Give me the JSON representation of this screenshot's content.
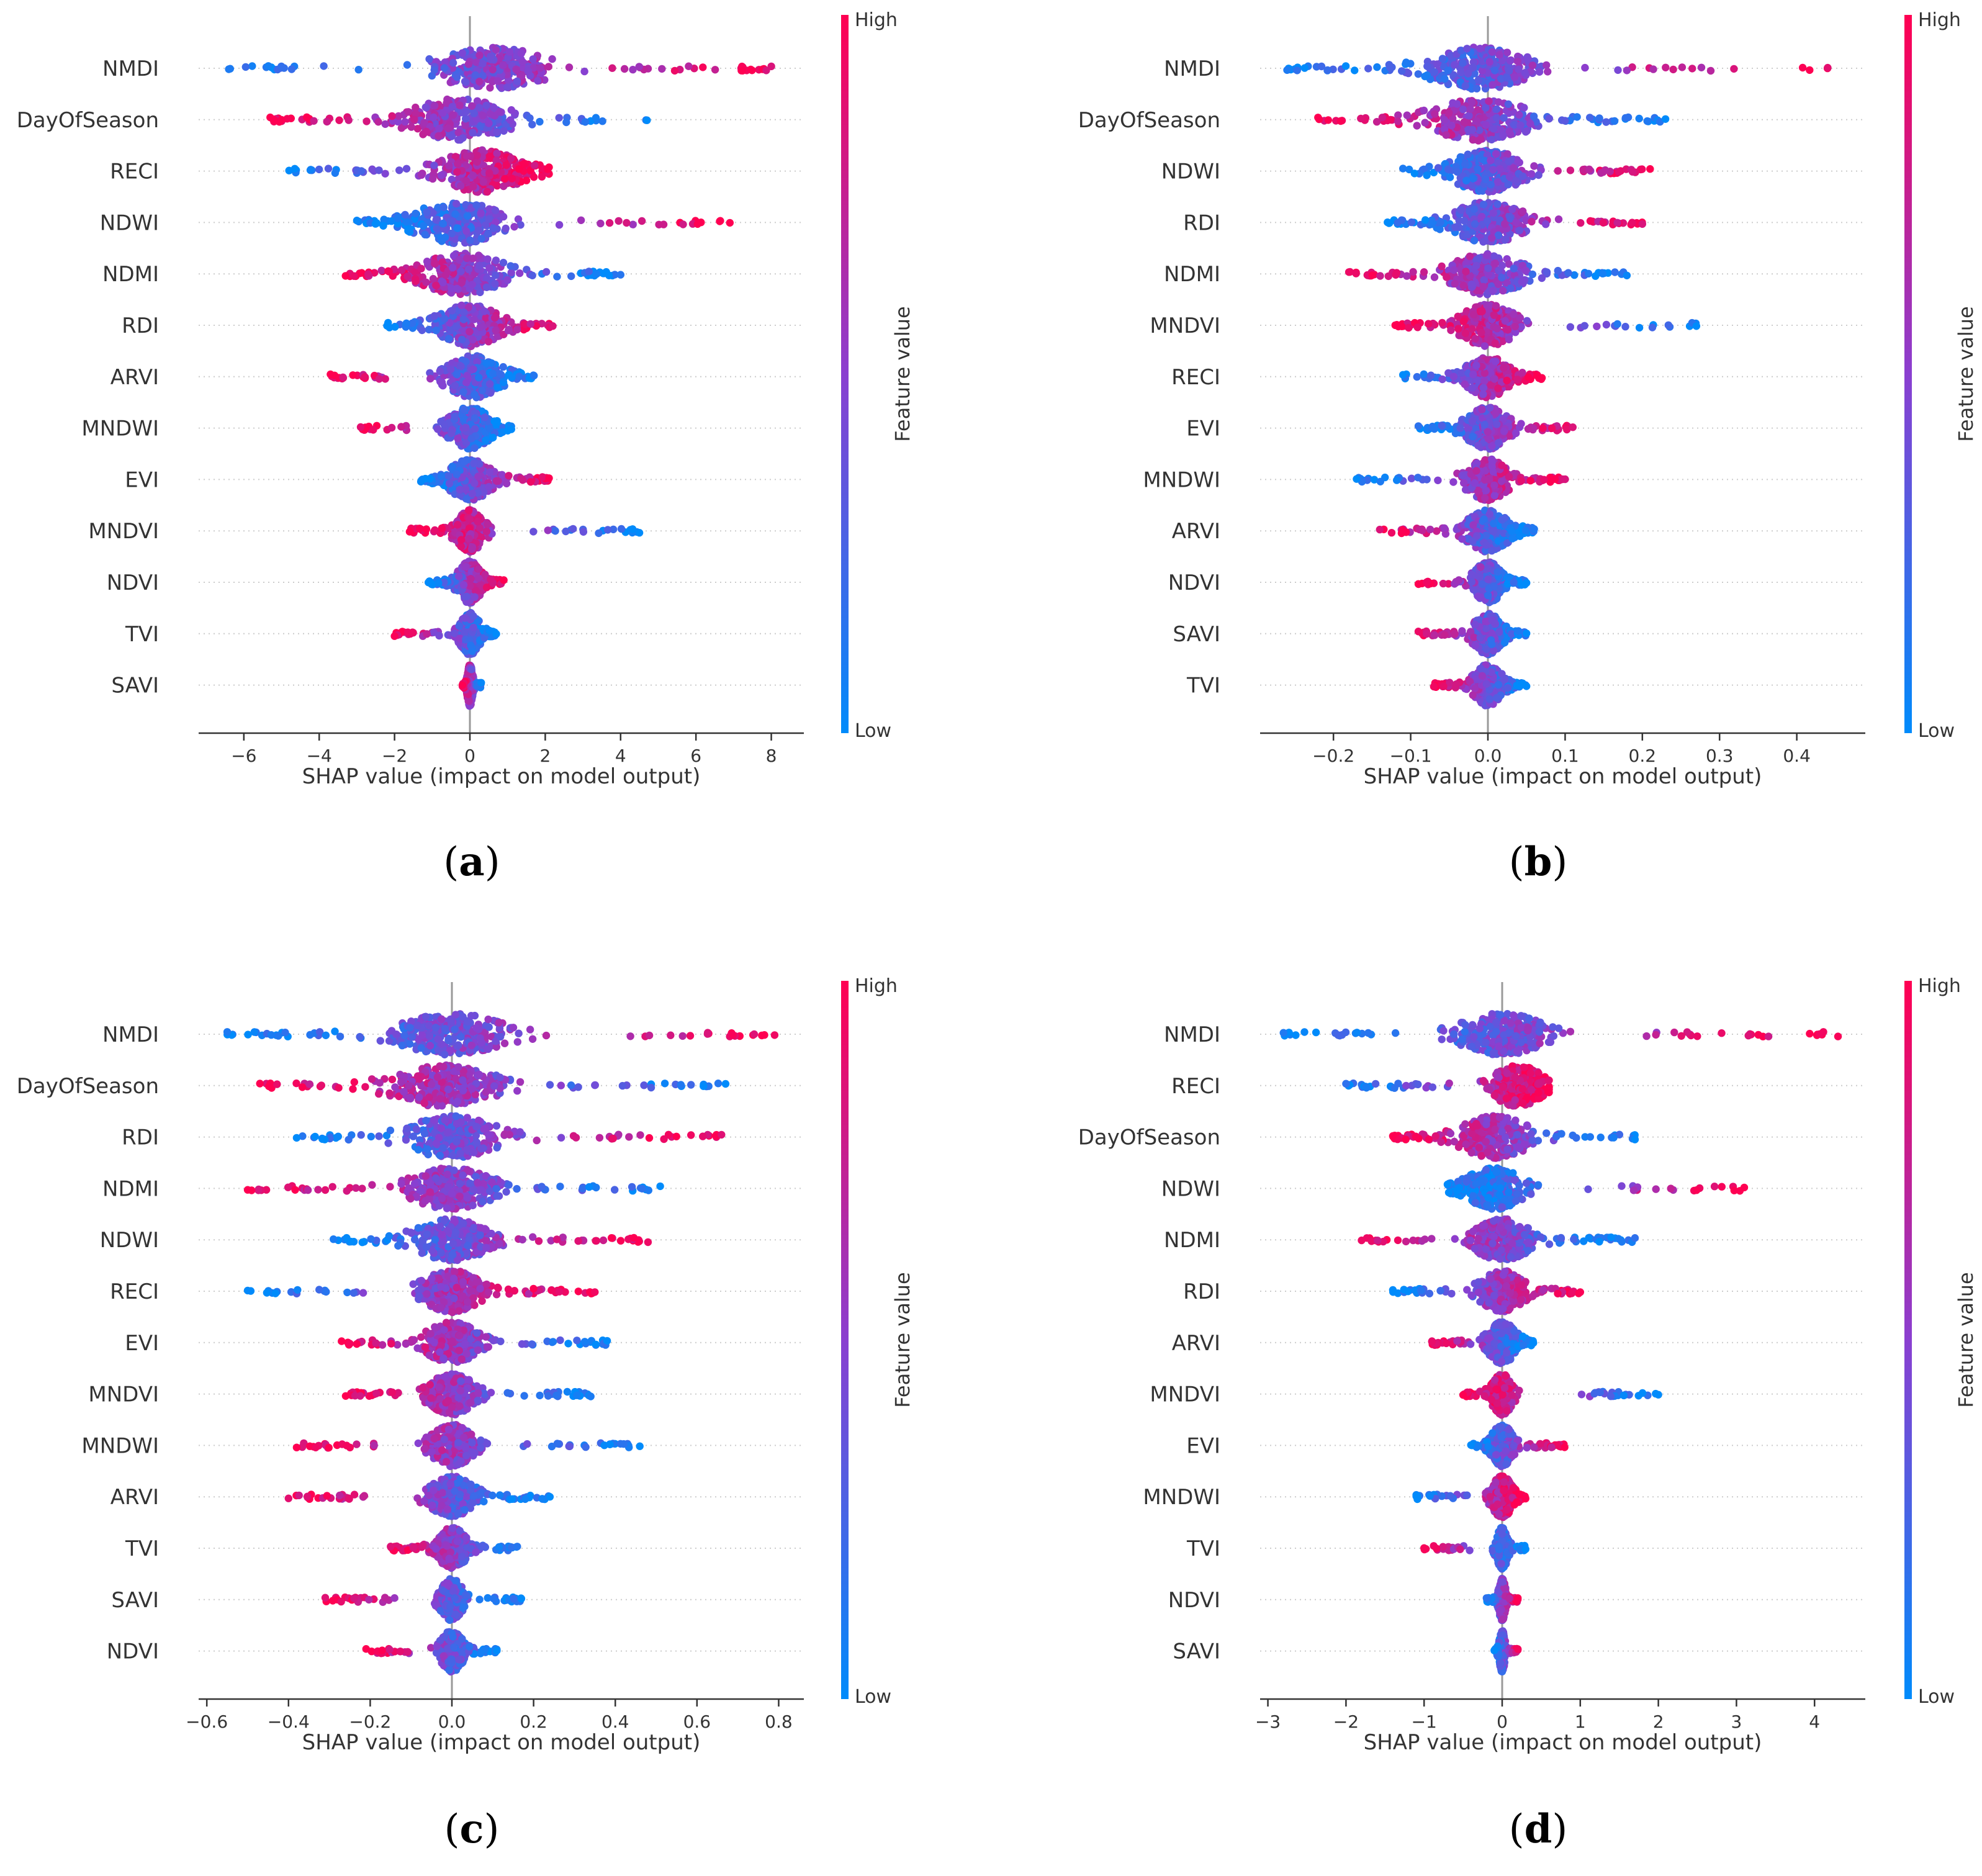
{
  "figure": {
    "colors": {
      "high": "#ff0052",
      "low": "#008bfb",
      "axis": "#333333",
      "zero_line": "#999999",
      "grid": "#cccccc"
    }
  },
  "chart_data": [
    {
      "type": "scatter",
      "subtype": "shap-beeswarm",
      "caption": "(a)",
      "xlabel": "SHAP value (impact on model output)",
      "xlim": [
        -7.2,
        8.8
      ],
      "xticks": [
        -6,
        -4,
        -2,
        0,
        2,
        4,
        6,
        8
      ],
      "xtick_labels": [
        "−6",
        "−4",
        "−2",
        "0",
        "2",
        "4",
        "6",
        "8"
      ],
      "colorbar": {
        "high": "High",
        "low": "Low",
        "title": "Feature value"
      },
      "features": [
        {
          "name": "NMDI",
          "min": -6.4,
          "max": 8.0,
          "spread": 1.6,
          "core": 0.6,
          "low_side": "left"
        },
        {
          "name": "DayOfSeason",
          "min": -5.3,
          "max": 4.7,
          "spread": 1.4,
          "core": -0.3,
          "low_side": "right"
        },
        {
          "name": "RECI",
          "min": -4.8,
          "max": 2.1,
          "spread": 1.2,
          "core": 0.3,
          "low_side": "left"
        },
        {
          "name": "NDWI",
          "min": -3.0,
          "max": 6.9,
          "spread": 1.3,
          "core": -0.3,
          "low_side": "left"
        },
        {
          "name": "NDMI",
          "min": -3.3,
          "max": 4.0,
          "spread": 1.2,
          "core": -0.2,
          "low_side": "right"
        },
        {
          "name": "RDI",
          "min": -2.2,
          "max": 2.2,
          "spread": 0.9,
          "core": 0.0,
          "low_side": "left"
        },
        {
          "name": "ARVI",
          "min": -3.7,
          "max": 1.7,
          "spread": 0.8,
          "core": 0.1,
          "low_side": "right"
        },
        {
          "name": "MNDWI",
          "min": -2.9,
          "max": 1.1,
          "spread": 0.6,
          "core": 0.0,
          "low_side": "right"
        },
        {
          "name": "EVI",
          "min": -1.3,
          "max": 2.1,
          "spread": 0.6,
          "core": 0.0,
          "low_side": "left"
        },
        {
          "name": "MNDVI",
          "min": -1.6,
          "max": 4.5,
          "spread": 0.4,
          "core": 0.0,
          "low_side": "right"
        },
        {
          "name": "NDVI",
          "min": -1.1,
          "max": 0.9,
          "spread": 0.35,
          "core": 0.0,
          "low_side": "left"
        },
        {
          "name": "TVI",
          "min": -2.0,
          "max": 0.7,
          "spread": 0.3,
          "core": 0.0,
          "low_side": "right"
        },
        {
          "name": "SAVI",
          "min": -0.2,
          "max": 0.3,
          "spread": 0.08,
          "core": 0.0,
          "low_side": "right"
        }
      ]
    },
    {
      "type": "scatter",
      "subtype": "shap-beeswarm",
      "caption": "(b)",
      "xlabel": "SHAP value (impact on model output)",
      "xlim": [
        -0.295,
        0.475
      ],
      "xticks": [
        -0.2,
        -0.1,
        0.0,
        0.1,
        0.2,
        0.3,
        0.4
      ],
      "xtick_labels": [
        "−0.2",
        "−0.1",
        "0.0",
        "0.1",
        "0.2",
        "0.3",
        "0.4"
      ],
      "colorbar": {
        "high": "High",
        "low": "Low",
        "title": "Feature value"
      },
      "features": [
        {
          "name": "NMDI",
          "min": -0.26,
          "max": 0.44,
          "spread": 0.07,
          "core": -0.01,
          "low_side": "left"
        },
        {
          "name": "DayOfSeason",
          "min": -0.22,
          "max": 0.23,
          "spread": 0.07,
          "core": -0.01,
          "low_side": "right"
        },
        {
          "name": "NDWI",
          "min": -0.11,
          "max": 0.21,
          "spread": 0.05,
          "core": 0.0,
          "low_side": "left"
        },
        {
          "name": "RDI",
          "min": -0.13,
          "max": 0.2,
          "spread": 0.05,
          "core": 0.0,
          "low_side": "left"
        },
        {
          "name": "NDMI",
          "min": -0.18,
          "max": 0.18,
          "spread": 0.05,
          "core": 0.0,
          "low_side": "right"
        },
        {
          "name": "MNDVI",
          "min": -0.12,
          "max": 0.27,
          "spread": 0.04,
          "core": 0.0,
          "low_side": "right"
        },
        {
          "name": "RECI",
          "min": -0.11,
          "max": 0.07,
          "spread": 0.03,
          "core": 0.0,
          "low_side": "left"
        },
        {
          "name": "EVI",
          "min": -0.09,
          "max": 0.11,
          "spread": 0.03,
          "core": 0.0,
          "low_side": "left"
        },
        {
          "name": "MNDWI",
          "min": -0.17,
          "max": 0.1,
          "spread": 0.03,
          "core": 0.0,
          "low_side": "left"
        },
        {
          "name": "ARVI",
          "min": -0.14,
          "max": 0.06,
          "spread": 0.03,
          "core": 0.0,
          "low_side": "right"
        },
        {
          "name": "NDVI",
          "min": -0.09,
          "max": 0.05,
          "spread": 0.02,
          "core": 0.0,
          "low_side": "right"
        },
        {
          "name": "SAVI",
          "min": -0.09,
          "max": 0.05,
          "spread": 0.02,
          "core": 0.0,
          "low_side": "right"
        },
        {
          "name": "TVI",
          "min": -0.07,
          "max": 0.05,
          "spread": 0.02,
          "core": 0.0,
          "low_side": "right"
        }
      ]
    },
    {
      "type": "scatter",
      "subtype": "shap-beeswarm",
      "caption": "(c)",
      "xlabel": "SHAP value (impact on model output)",
      "xlim": [
        -0.62,
        0.86
      ],
      "xticks": [
        -0.6,
        -0.4,
        -0.2,
        0.0,
        0.2,
        0.4,
        0.6,
        0.8
      ],
      "xtick_labels": [
        "−0.6",
        "−0.4",
        "−0.2",
        "0.0",
        "0.2",
        "0.4",
        "0.6",
        "0.8"
      ],
      "colorbar": {
        "high": "High",
        "low": "Low",
        "title": "Feature value"
      },
      "features": [
        {
          "name": "NMDI",
          "min": -0.55,
          "max": 0.79,
          "spread": 0.14,
          "core": 0.0,
          "low_side": "left"
        },
        {
          "name": "DayOfSeason",
          "min": -0.47,
          "max": 0.67,
          "spread": 0.14,
          "core": -0.02,
          "low_side": "right"
        },
        {
          "name": "RDI",
          "min": -0.38,
          "max": 0.66,
          "spread": 0.12,
          "core": 0.0,
          "low_side": "left"
        },
        {
          "name": "NDMI",
          "min": -0.5,
          "max": 0.51,
          "spread": 0.11,
          "core": 0.0,
          "low_side": "right"
        },
        {
          "name": "NDWI",
          "min": -0.29,
          "max": 0.48,
          "spread": 0.1,
          "core": 0.0,
          "low_side": "left"
        },
        {
          "name": "RECI",
          "min": -0.5,
          "max": 0.35,
          "spread": 0.08,
          "core": 0.0,
          "low_side": "left"
        },
        {
          "name": "EVI",
          "min": -0.27,
          "max": 0.38,
          "spread": 0.07,
          "core": 0.0,
          "low_side": "right"
        },
        {
          "name": "MNDVI",
          "min": -0.26,
          "max": 0.34,
          "spread": 0.06,
          "core": 0.0,
          "low_side": "right"
        },
        {
          "name": "MNDWI",
          "min": -0.38,
          "max": 0.46,
          "spread": 0.06,
          "core": 0.0,
          "low_side": "right"
        },
        {
          "name": "ARVI",
          "min": -0.4,
          "max": 0.24,
          "spread": 0.06,
          "core": 0.0,
          "low_side": "right"
        },
        {
          "name": "TVI",
          "min": -0.15,
          "max": 0.16,
          "spread": 0.04,
          "core": 0.0,
          "low_side": "right"
        },
        {
          "name": "SAVI",
          "min": -0.31,
          "max": 0.17,
          "spread": 0.03,
          "core": 0.0,
          "low_side": "right"
        },
        {
          "name": "NDVI",
          "min": -0.21,
          "max": 0.11,
          "spread": 0.03,
          "core": 0.0,
          "low_side": "right"
        }
      ]
    },
    {
      "type": "scatter",
      "subtype": "shap-beeswarm",
      "caption": "(d)",
      "xlabel": "SHAP value (impact on model output)",
      "xlim": [
        -3.1,
        4.7
      ],
      "xticks": [
        -3,
        -2,
        -1,
        0,
        1,
        2,
        3,
        4
      ],
      "xtick_labels": [
        "−3",
        "−2",
        "−1",
        "0",
        "1",
        "2",
        "3",
        "4"
      ],
      "colorbar": {
        "high": "High",
        "low": "Low",
        "title": "Feature value"
      },
      "features": [
        {
          "name": "NMDI",
          "min": -2.8,
          "max": 4.3,
          "spread": 0.6,
          "core": 0.0,
          "low_side": "left"
        },
        {
          "name": "RECI",
          "min": -2.0,
          "max": 0.6,
          "spread": 0.35,
          "core": 0.2,
          "low_side": "left"
        },
        {
          "name": "DayOfSeason",
          "min": -1.4,
          "max": 1.7,
          "spread": 0.5,
          "core": -0.1,
          "low_side": "right"
        },
        {
          "name": "NDWI",
          "min": -0.7,
          "max": 3.1,
          "spread": 0.4,
          "core": -0.1,
          "low_side": "left"
        },
        {
          "name": "NDMI",
          "min": -1.8,
          "max": 1.7,
          "spread": 0.4,
          "core": 0.0,
          "low_side": "right"
        },
        {
          "name": "RDI",
          "min": -1.4,
          "max": 1.0,
          "spread": 0.3,
          "core": 0.0,
          "low_side": "left"
        },
        {
          "name": "ARVI",
          "min": -0.9,
          "max": 0.4,
          "spread": 0.2,
          "core": 0.0,
          "low_side": "right"
        },
        {
          "name": "MNDVI",
          "min": -0.5,
          "max": 2.0,
          "spread": 0.15,
          "core": 0.0,
          "low_side": "right"
        },
        {
          "name": "EVI",
          "min": -0.4,
          "max": 0.8,
          "spread": 0.15,
          "core": 0.0,
          "low_side": "left"
        },
        {
          "name": "MNDWI",
          "min": -1.1,
          "max": 0.3,
          "spread": 0.15,
          "core": 0.0,
          "low_side": "left"
        },
        {
          "name": "TVI",
          "min": -1.0,
          "max": 0.3,
          "spread": 0.08,
          "core": 0.0,
          "low_side": "right"
        },
        {
          "name": "NDVI",
          "min": -0.2,
          "max": 0.2,
          "spread": 0.05,
          "core": 0.0,
          "low_side": "left"
        },
        {
          "name": "SAVI",
          "min": -0.1,
          "max": 0.2,
          "spread": 0.04,
          "core": 0.0,
          "low_side": "left"
        }
      ]
    }
  ]
}
